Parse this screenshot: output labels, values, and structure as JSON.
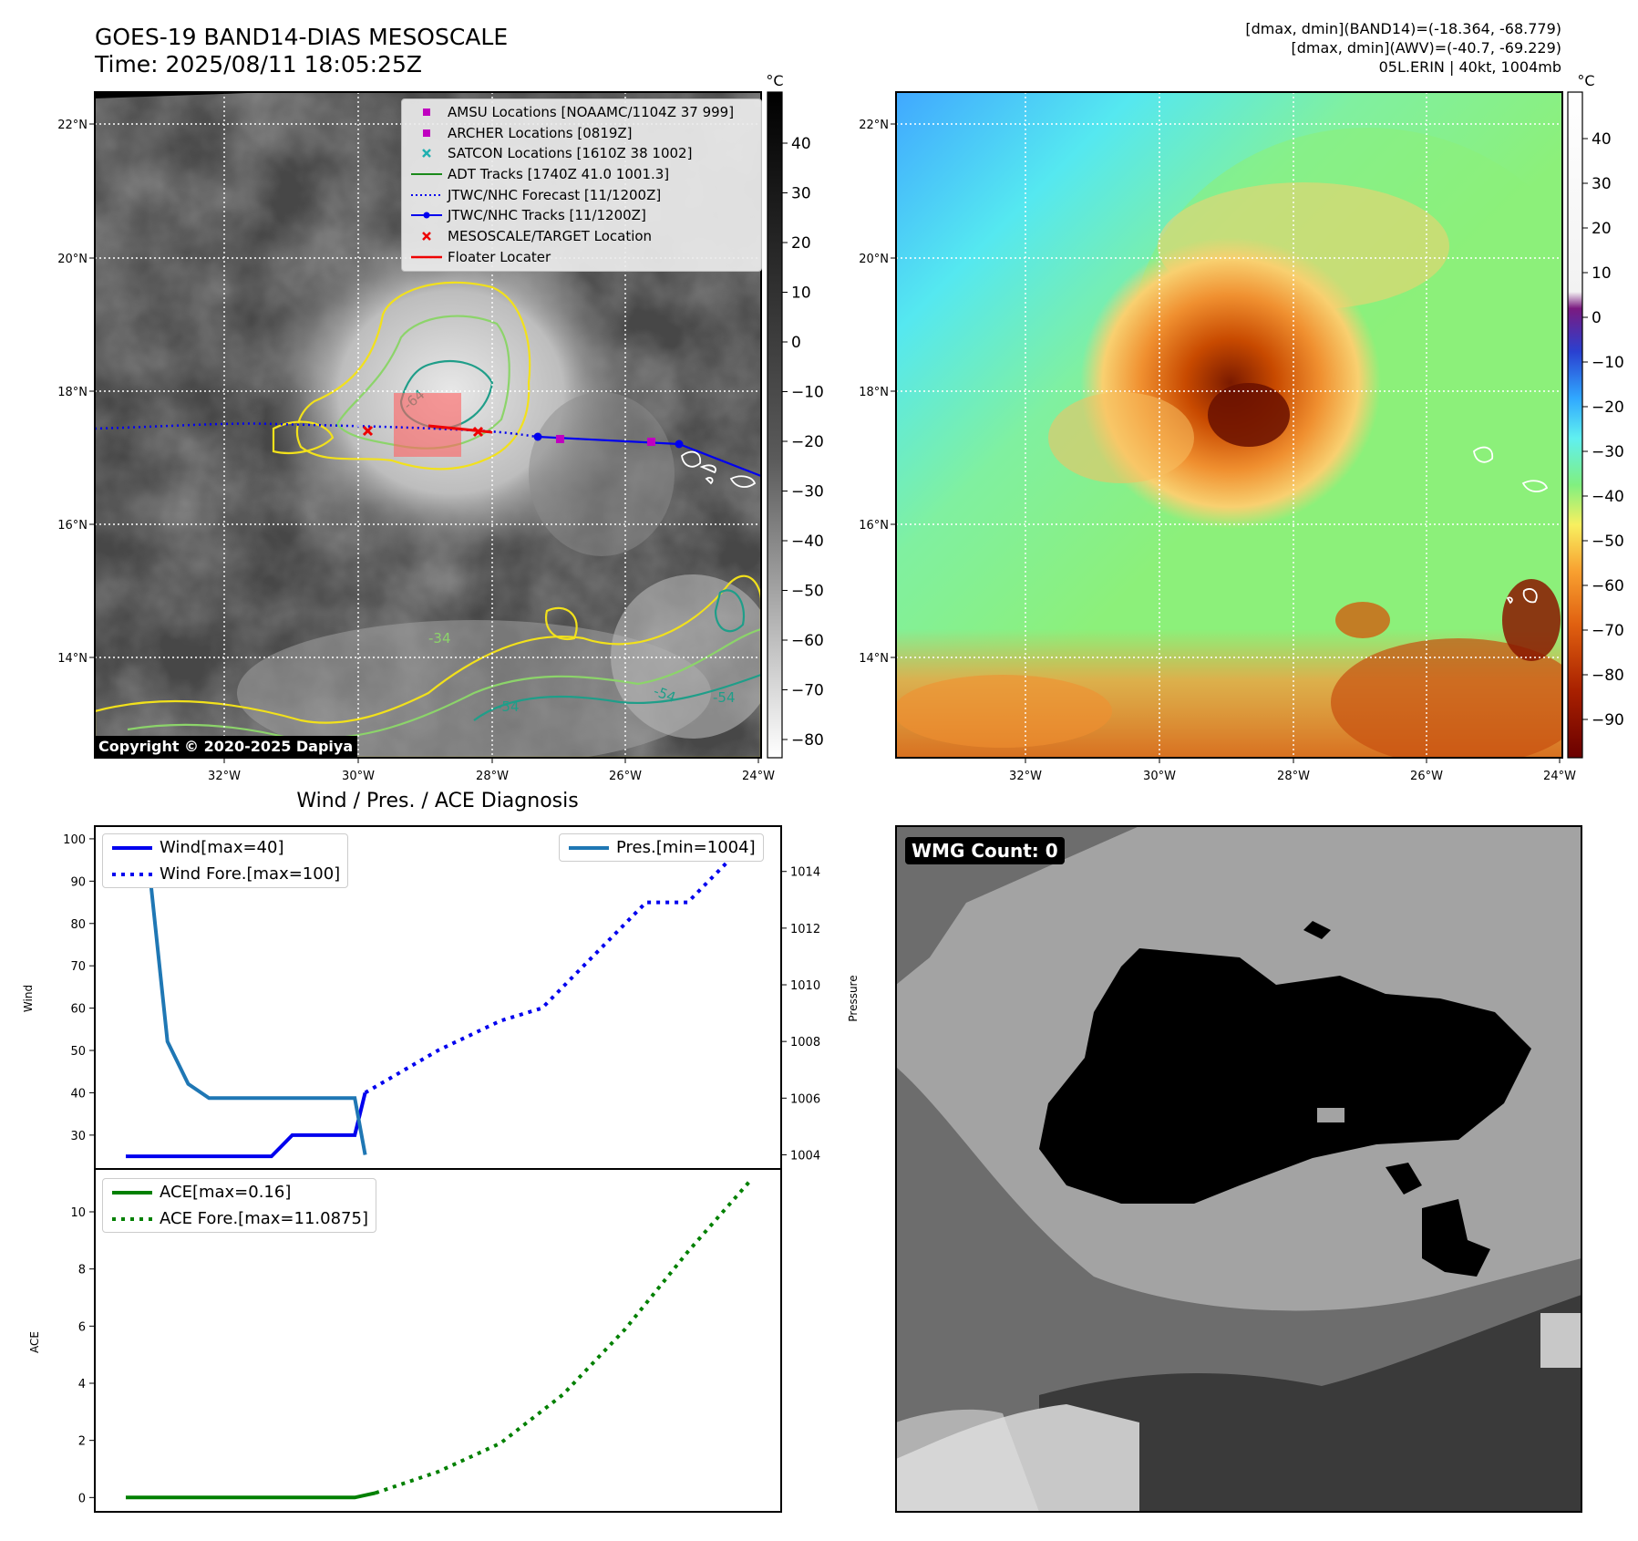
{
  "header": {
    "title_line1": "GOES-19 BAND14-DIAS MESOSCALE",
    "title_line2": "Time: 2025/08/11 18:05:25Z",
    "info_line1": "[dmax, dmin](BAND14)=(-18.364, -68.779)",
    "info_line2": "[dmax, dmin](AWV)=(-40.7, -69.229)",
    "info_line3": "05L.ERIN | 40kt, 1004mb"
  },
  "copyright": "Copyright © 2020-2025 Dapiya",
  "map": {
    "lon_ticks": [
      "32°W",
      "30°W",
      "28°W",
      "26°W",
      "24°W"
    ],
    "lat_ticks": [
      "22°N",
      "20°N",
      "18°N",
      "16°N",
      "14°N"
    ],
    "lon_range": [
      -33.9,
      -23.9
    ],
    "lat_range": [
      12.6,
      22.5
    ],
    "legend": [
      {
        "label": "AMSU Locations [NOAAMC/1104Z 37 999]",
        "color": "#c000c0",
        "symbol": "square"
      },
      {
        "label": "ARCHER Locations [0819Z]",
        "color": "#c000c0",
        "symbol": "square"
      },
      {
        "label": "SATCON Locations [1610Z 38 1002]",
        "color": "#20b0b0",
        "symbol": "x"
      },
      {
        "label": "ADT Tracks [1740Z 41.0 1001.3]",
        "color": "#1a8a1a",
        "symbol": "line"
      },
      {
        "label": "JTWC/NHC Forecast [11/1200Z]",
        "color": "#0000ee",
        "symbol": "dotted"
      },
      {
        "label": "JTWC/NHC Tracks [11/1200Z]",
        "color": "#0000ee",
        "symbol": "line-dot"
      },
      {
        "label": "MESOSCALE/TARGET Location",
        "color": "#ee0000",
        "symbol": "x"
      },
      {
        "label": "Floater Locater",
        "color": "#ee0000",
        "symbol": "line"
      }
    ],
    "contour_labels": [
      "-64",
      "-54",
      "-54",
      "-34",
      "-54"
    ]
  },
  "colorbar_left": {
    "unit": "°C",
    "ticks": [
      "40",
      "30",
      "20",
      "10",
      "0",
      "−10",
      "−20",
      "−30",
      "−40",
      "−50",
      "−60",
      "−70",
      "−80"
    ]
  },
  "colorbar_right": {
    "unit": "°C",
    "ticks": [
      "40",
      "30",
      "20",
      "10",
      "0",
      "−10",
      "−20",
      "−30",
      "−40",
      "−50",
      "−60",
      "−70",
      "−80",
      "−90"
    ]
  },
  "chart_data": [
    {
      "type": "line",
      "title": "Wind / Pres. / ACE Diagnosis",
      "ylabel": "Wind",
      "ylabel_right": "Pressure",
      "ylim": [
        22,
        103
      ],
      "ylim_right": [
        1003.5,
        1015.6
      ],
      "yticks": [
        "100",
        "90",
        "80",
        "70",
        "60",
        "50",
        "40",
        "30"
      ],
      "yticks_right": [
        "1014",
        "1012",
        "1010",
        "1008",
        "1006",
        "1004"
      ],
      "x": [
        0,
        1,
        2,
        3,
        4,
        5,
        6,
        7,
        8,
        9,
        10,
        11,
        12,
        13,
        14,
        15,
        16,
        17,
        18,
        19,
        20,
        21,
        22,
        23,
        24,
        25,
        26,
        27,
        28,
        29,
        30
      ],
      "series": [
        {
          "name": "Wind[max=40]",
          "color": "#0000ee",
          "style": "solid",
          "x": [
            0,
            1,
            2,
            3,
            4,
            5,
            6,
            7,
            7.5,
            8,
            9,
            10,
            11,
            11.5
          ],
          "values": [
            25,
            25,
            25,
            25,
            25,
            25,
            25,
            25,
            27.5,
            30,
            30,
            30,
            30,
            40
          ]
        },
        {
          "name": "Wind Fore.[max=100]",
          "color": "#0000ee",
          "style": "dotted",
          "x": [
            11.5,
            15,
            18,
            20,
            22,
            24,
            25,
            27,
            29,
            30
          ],
          "values": [
            40,
            50,
            57,
            60,
            70,
            80,
            85,
            85,
            95,
            100
          ]
        },
        {
          "name": "Pres.[min=1004]",
          "color": "#1f77b4",
          "style": "solid",
          "axis": "right",
          "x": [
            0,
            1,
            2,
            3,
            4,
            5,
            6,
            7,
            8,
            9,
            10,
            11,
            11.5
          ],
          "values": [
            1015,
            1015,
            1008,
            1006.5,
            1006,
            1006,
            1006,
            1006,
            1006,
            1006,
            1006,
            1006,
            1004
          ]
        }
      ]
    },
    {
      "type": "line",
      "ylabel": "ACE",
      "ylim": [
        -0.5,
        11.5
      ],
      "yticks": [
        "10",
        "8",
        "6",
        "4",
        "2",
        "0"
      ],
      "series": [
        {
          "name": "ACE[max=0.16]",
          "color": "#008000",
          "style": "solid",
          "x": [
            0,
            11,
            12
          ],
          "values": [
            0,
            0,
            0.16
          ]
        },
        {
          "name": "ACE Fore.[max=11.0875]",
          "color": "#008000",
          "style": "dotted",
          "x": [
            12,
            15,
            18,
            21,
            24,
            27,
            30
          ],
          "values": [
            0.16,
            0.9,
            1.9,
            3.6,
            5.9,
            8.6,
            11.0875
          ]
        }
      ]
    }
  ],
  "wmg": {
    "label": "WMG Count: 0"
  }
}
